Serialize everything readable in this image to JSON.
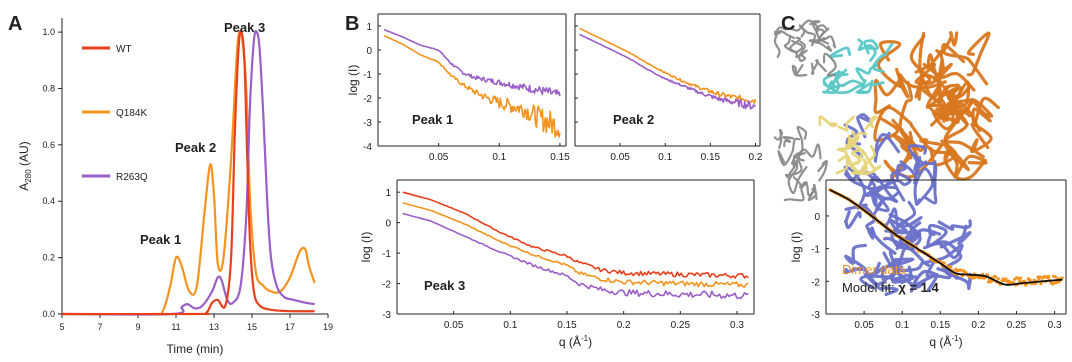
{
  "colors": {
    "WT": "#e8401c",
    "Q184K": "#f5931e",
    "R263Q": "#9b5fc8",
    "fit": "#111111",
    "dimer": "#f5931e",
    "axis": "#222222",
    "protein_gray": "#8a8a8a",
    "protein_cyan": "#5bc7c7",
    "protein_yellow": "#e6d57a",
    "protein_orange": "#d9771f",
    "protein_blue": "#6a72c9"
  },
  "chart_data": [
    {
      "id": "A",
      "type": "line",
      "panel_label": "A",
      "xlabel": "Time (min)",
      "ylabel": "A280 (AU)",
      "ylabel_main": "A",
      "ylabel_sub": "280",
      "ylabel_rest": " (AU)",
      "xlim": [
        5,
        19
      ],
      "ylim": [
        0,
        1.05
      ],
      "xticks": [
        "5",
        "7",
        "9",
        "11",
        "13",
        "15",
        "17",
        "19"
      ],
      "yticks": [
        "0.0",
        "0.2",
        "0.4",
        "0.6",
        "0.8",
        "1.0"
      ],
      "legend": [
        "WT",
        "Q184K",
        "R263Q"
      ],
      "legend_position": "top-left",
      "annotations": [
        "Peak 1",
        "Peak 2",
        "Peak 3"
      ],
      "series": [
        {
          "name": "WT",
          "color_key": "WT",
          "x": [
            5,
            12.0,
            12.6,
            12.9,
            13.2,
            13.6,
            13.9,
            14.1,
            14.3,
            14.45,
            14.6,
            14.75,
            14.9,
            15.1,
            15.4,
            16.0,
            17.0,
            18.3
          ],
          "y": [
            0,
            0,
            0.005,
            0.04,
            0.05,
            0.03,
            0.2,
            0.65,
            0.95,
            1.0,
            0.9,
            0.55,
            0.25,
            0.08,
            0.03,
            0.015,
            0.01,
            0.01
          ]
        },
        {
          "name": "Q184K",
          "color_key": "Q184K",
          "x": [
            5,
            9.8,
            10.3,
            10.7,
            11.0,
            11.3,
            11.7,
            12.1,
            12.5,
            12.8,
            13.0,
            13.2,
            13.5,
            13.9,
            14.2,
            14.35,
            14.5,
            14.7,
            14.9,
            15.2,
            15.6,
            16.0,
            16.5,
            17.0,
            17.5,
            17.8,
            18.0,
            18.3
          ],
          "y": [
            0,
            0,
            0.01,
            0.1,
            0.2,
            0.17,
            0.08,
            0.1,
            0.36,
            0.53,
            0.42,
            0.18,
            0.2,
            0.55,
            0.92,
            1.0,
            0.97,
            0.8,
            0.4,
            0.15,
            0.1,
            0.08,
            0.08,
            0.13,
            0.22,
            0.23,
            0.17,
            0.11
          ]
        },
        {
          "name": "R263Q",
          "color_key": "R263Q",
          "x": [
            5,
            10.8,
            11.3,
            11.6,
            12.0,
            12.4,
            12.9,
            13.2,
            13.4,
            13.7,
            14.0,
            14.4,
            14.7,
            14.9,
            15.1,
            15.25,
            15.4,
            15.6,
            15.8,
            16.0,
            16.3,
            16.7,
            17.2,
            17.8,
            18.3
          ],
          "y": [
            0,
            0,
            0.025,
            0.035,
            0.02,
            0.03,
            0.08,
            0.13,
            0.12,
            0.05,
            0.04,
            0.1,
            0.35,
            0.75,
            0.97,
            1.0,
            0.94,
            0.7,
            0.4,
            0.2,
            0.1,
            0.06,
            0.05,
            0.04,
            0.035
          ]
        }
      ]
    },
    {
      "id": "B1",
      "type": "line",
      "panel_label": "B",
      "annotation": "Peak 1",
      "ylabel": "log (I)",
      "xlim": [
        0,
        0.155
      ],
      "ylim": [
        -4,
        1.5
      ],
      "xticks": [
        0.05,
        0.1,
        0.15
      ],
      "xtick_labels": [
        "0.05",
        "0.1",
        "0.15"
      ],
      "yticks": [
        -4,
        -3,
        -2,
        -1,
        0,
        1
      ],
      "ytick_labels": [
        "-4",
        "-3",
        "-2",
        "-1",
        "0",
        "1"
      ],
      "series": [
        {
          "name": "R263Q",
          "color_key": "R263Q",
          "noisy": true,
          "x": [
            0.005,
            0.02,
            0.035,
            0.05,
            0.06,
            0.07,
            0.08,
            0.1,
            0.12,
            0.14,
            0.15
          ],
          "y": [
            0.85,
            0.55,
            0.2,
            0.0,
            -0.55,
            -0.95,
            -1.15,
            -1.35,
            -1.55,
            -1.75,
            -1.9
          ],
          "noise": [
            0,
            0,
            0,
            0.02,
            0.04,
            0.06,
            0.08,
            0.12,
            0.15,
            0.2,
            0.2
          ]
        },
        {
          "name": "Q184K",
          "color_key": "Q184K",
          "noisy": true,
          "x": [
            0.005,
            0.02,
            0.035,
            0.05,
            0.06,
            0.07,
            0.08,
            0.09,
            0.1,
            0.12,
            0.13,
            0.14,
            0.15
          ],
          "y": [
            0.6,
            0.25,
            -0.2,
            -0.5,
            -1.05,
            -1.45,
            -1.75,
            -2.0,
            -2.2,
            -2.45,
            -2.75,
            -3.0,
            -3.2
          ],
          "noise": [
            0,
            0,
            0,
            0.03,
            0.05,
            0.08,
            0.12,
            0.18,
            0.25,
            0.35,
            0.45,
            0.55,
            0.5
          ]
        }
      ]
    },
    {
      "id": "B2",
      "type": "line",
      "annotation": "Peak 2",
      "xlim": [
        0,
        0.205
      ],
      "ylim": [
        -4,
        1.5
      ],
      "xticks": [
        0.05,
        0.1,
        0.15,
        0.2
      ],
      "xtick_labels": [
        "0.05",
        "0.1",
        "0.15",
        "0.2"
      ],
      "yticks": [
        -4,
        -3,
        -2,
        -1,
        0,
        1
      ],
      "series": [
        {
          "name": "Q184K",
          "color_key": "Q184K",
          "noisy": true,
          "x": [
            0.005,
            0.03,
            0.06,
            0.08,
            0.1,
            0.12,
            0.14,
            0.16,
            0.18,
            0.2
          ],
          "y": [
            0.9,
            0.45,
            -0.1,
            -0.55,
            -0.95,
            -1.3,
            -1.6,
            -1.85,
            -2.0,
            -2.1
          ],
          "noise": [
            0,
            0,
            0.01,
            0.02,
            0.03,
            0.05,
            0.07,
            0.1,
            0.12,
            0.15
          ]
        },
        {
          "name": "R263Q",
          "color_key": "R263Q",
          "noisy": true,
          "x": [
            0.005,
            0.03,
            0.06,
            0.08,
            0.1,
            0.12,
            0.14,
            0.16,
            0.18,
            0.2
          ],
          "y": [
            0.65,
            0.2,
            -0.35,
            -0.8,
            -1.2,
            -1.5,
            -1.8,
            -2.05,
            -2.2,
            -2.35
          ],
          "noise": [
            0,
            0,
            0.01,
            0.02,
            0.03,
            0.05,
            0.07,
            0.1,
            0.15,
            0.2
          ]
        }
      ]
    },
    {
      "id": "B3",
      "type": "line",
      "annotation": "Peak 3",
      "ylabel": "log (I)",
      "xlabel_main": "q (Å",
      "xlabel_sup": "-1",
      "xlabel_end": ")",
      "xlim": [
        0,
        0.315
      ],
      "ylim": [
        -3,
        1.4
      ],
      "xticks": [
        0.05,
        0.1,
        0.15,
        0.2,
        0.25,
        0.3
      ],
      "xtick_labels": [
        "0.05",
        "0.1",
        "0.15",
        "0.2",
        "0.25",
        "0.3"
      ],
      "yticks": [
        -3,
        -2,
        -1,
        0,
        1
      ],
      "ytick_labels": [
        "-3",
        "-2",
        "-1",
        "0",
        "1"
      ],
      "series": [
        {
          "name": "WT",
          "color_key": "WT",
          "noisy": true,
          "x": [
            0.005,
            0.03,
            0.06,
            0.09,
            0.12,
            0.15,
            0.16,
            0.18,
            0.2,
            0.25,
            0.31
          ],
          "y": [
            1.0,
            0.75,
            0.3,
            -0.3,
            -0.8,
            -1.1,
            -1.3,
            -1.55,
            -1.65,
            -1.7,
            -1.75
          ],
          "noise": [
            0,
            0,
            0.01,
            0.02,
            0.03,
            0.04,
            0.05,
            0.06,
            0.07,
            0.08,
            0.08
          ]
        },
        {
          "name": "Q184K",
          "color_key": "Q184K",
          "noisy": true,
          "x": [
            0.005,
            0.03,
            0.06,
            0.09,
            0.12,
            0.15,
            0.16,
            0.18,
            0.2,
            0.25,
            0.31
          ],
          "y": [
            0.65,
            0.4,
            -0.05,
            -0.6,
            -1.05,
            -1.4,
            -1.65,
            -1.85,
            -1.95,
            -2.0,
            -2.05
          ],
          "noise": [
            0,
            0,
            0.01,
            0.02,
            0.03,
            0.04,
            0.05,
            0.07,
            0.08,
            0.09,
            0.09
          ]
        },
        {
          "name": "R263Q",
          "color_key": "R263Q",
          "noisy": true,
          "x": [
            0.005,
            0.03,
            0.06,
            0.09,
            0.12,
            0.15,
            0.16,
            0.18,
            0.2,
            0.25,
            0.31
          ],
          "y": [
            0.3,
            0.05,
            -0.45,
            -0.95,
            -1.4,
            -1.75,
            -2.0,
            -2.2,
            -2.3,
            -2.35,
            -2.4
          ],
          "noise": [
            0,
            0,
            0.01,
            0.02,
            0.04,
            0.05,
            0.07,
            0.09,
            0.1,
            0.12,
            0.12
          ]
        }
      ]
    },
    {
      "id": "C",
      "type": "line",
      "panel_label": "C",
      "ylabel": "log (I)",
      "xlabel_main": "q (Å",
      "xlabel_sup": "-1",
      "xlabel_end": ")",
      "xlim": [
        0,
        0.315
      ],
      "ylim": [
        -3,
        1.1
      ],
      "xticks": [
        0.05,
        0.1,
        0.15,
        0.2,
        0.25,
        0.3
      ],
      "xtick_labels": [
        "0.05",
        "0.1",
        "0.15",
        "0.2",
        "0.25",
        "0.3"
      ],
      "yticks": [
        -3,
        -2,
        -1,
        0
      ],
      "ytick_labels": [
        "-3",
        "-2",
        "-1",
        "0"
      ],
      "legend_text_data": "Dimer data",
      "legend_text_fit": "Model fit: ",
      "chi_text": "χ = 1.4",
      "series": [
        {
          "name": "Dimer data",
          "color_key": "dimer",
          "noisy": true,
          "scatter": true,
          "x": [
            0.005,
            0.03,
            0.06,
            0.09,
            0.12,
            0.15,
            0.17,
            0.2,
            0.23,
            0.26,
            0.31
          ],
          "y": [
            0.8,
            0.5,
            0.0,
            -0.55,
            -1.0,
            -1.45,
            -1.7,
            -1.85,
            -2.0,
            -2.0,
            -1.95
          ],
          "noise": [
            0,
            0.01,
            0.02,
            0.03,
            0.05,
            0.07,
            0.09,
            0.1,
            0.12,
            0.12,
            0.12
          ]
        },
        {
          "name": "Model fit",
          "color_key": "fit",
          "x": [
            0.005,
            0.03,
            0.06,
            0.09,
            0.12,
            0.15,
            0.17,
            0.19,
            0.21,
            0.235,
            0.26,
            0.31
          ],
          "y": [
            0.8,
            0.5,
            0.0,
            -0.55,
            -1.0,
            -1.45,
            -1.75,
            -1.8,
            -1.85,
            -2.1,
            -2.05,
            -1.95
          ]
        }
      ]
    }
  ]
}
